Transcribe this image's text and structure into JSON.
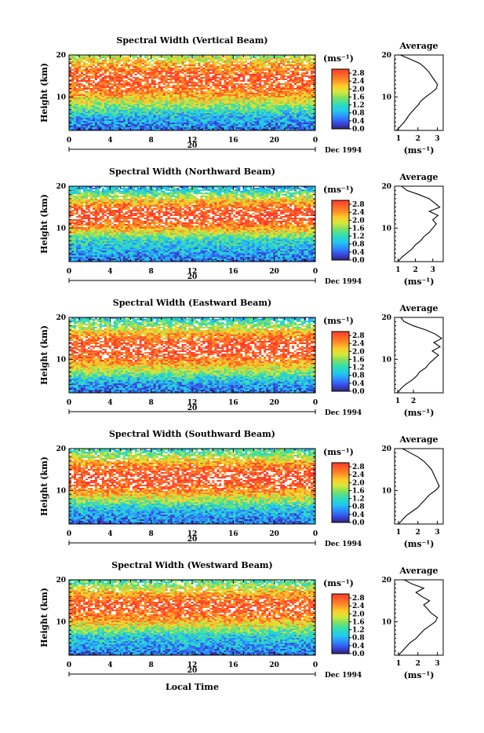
{
  "figure": {
    "xlabel": "Local Time",
    "date_label": "Dec 1994",
    "day_label": "20",
    "ylabel": "Height (km)",
    "units_label": "(ms⁻¹)",
    "avg_title": "Average",
    "avg_xlabel": "(ms⁻¹)"
  },
  "chart_data": [
    {
      "type": "heatmap",
      "title": "Spectral Width (Vertical Beam)",
      "x_ticks": [
        "0",
        "4",
        "8",
        "12",
        "16",
        "20",
        "0"
      ],
      "xlim": [
        0,
        24
      ],
      "y_ticks": [
        "10",
        "20"
      ],
      "ylim": [
        2,
        20
      ],
      "colorbar": {
        "ticks": [
          "2.8",
          "2.4",
          "2.0",
          "1.6",
          "1.2",
          "0.8",
          "0.4",
          "0.0"
        ],
        "range": [
          0,
          3.0
        ]
      },
      "profile_peak": [
        3.5,
        14,
        8,
        0.95
      ],
      "avg": {
        "x_ticks": [
          "1",
          "2",
          "3"
        ],
        "xlim": [
          0.8,
          3.3
        ],
        "heights": [
          2,
          3,
          4,
          5,
          6,
          7,
          8,
          9,
          10,
          11,
          12,
          13,
          14,
          15,
          16,
          17,
          18,
          19,
          20
        ],
        "values": [
          0.9,
          1.1,
          1.3,
          1.45,
          1.6,
          1.8,
          2.0,
          2.15,
          2.4,
          2.7,
          2.95,
          3.0,
          2.85,
          2.7,
          2.55,
          2.35,
          2.1,
          1.6,
          1.1
        ]
      }
    },
    {
      "type": "heatmap",
      "title": "Spectral Width (Northward Beam)",
      "x_ticks": [
        "0",
        "4",
        "8",
        "12",
        "16",
        "20",
        "0"
      ],
      "xlim": [
        0,
        24
      ],
      "y_ticks": [
        "10",
        "20"
      ],
      "ylim": [
        2,
        20
      ],
      "colorbar": {
        "ticks": [
          "2.8",
          "2.4",
          "2.0",
          "1.6",
          "1.2",
          "0.8",
          "0.4",
          "0.0"
        ],
        "range": [
          0,
          3.0
        ]
      },
      "profile_peak": [
        3.5,
        13,
        6,
        1.0
      ],
      "avg": {
        "x_ticks": [
          "1",
          "2",
          "3"
        ],
        "xlim": [
          0.8,
          3.6
        ],
        "heights": [
          2,
          3,
          4,
          5,
          6,
          7,
          8,
          9,
          10,
          11,
          12,
          13,
          14,
          15,
          16,
          17,
          18,
          19,
          20
        ],
        "values": [
          1.0,
          1.2,
          1.5,
          1.8,
          2.0,
          2.3,
          2.5,
          2.8,
          3.0,
          3.2,
          3.0,
          3.3,
          2.8,
          3.4,
          3.1,
          2.8,
          2.2,
          1.5,
          1.2
        ]
      }
    },
    {
      "type": "heatmap",
      "title": "Spectral Width (Eastward Beam)",
      "x_ticks": [
        "0",
        "4",
        "8",
        "12",
        "16",
        "20",
        "0"
      ],
      "xlim": [
        0,
        24
      ],
      "y_ticks": [
        "10",
        "20"
      ],
      "ylim": [
        2,
        20
      ],
      "colorbar": {
        "ticks": [
          "2.8",
          "2.4",
          "2.0",
          "1.6",
          "1.2",
          "0.8",
          "0.4",
          "0.0"
        ],
        "range": [
          0,
          3.0
        ]
      },
      "profile_peak": [
        3.5,
        12.5,
        7,
        1.0
      ],
      "avg": {
        "x_ticks": [
          "1",
          "2"
        ],
        "xlim": [
          0.8,
          3.9
        ],
        "heights": [
          2,
          3,
          4,
          5,
          6,
          7,
          8,
          9,
          10,
          11,
          12,
          13,
          14,
          15,
          16,
          17,
          18,
          19,
          20
        ],
        "values": [
          1.0,
          1.2,
          1.5,
          1.9,
          2.2,
          2.4,
          2.8,
          3.0,
          3.3,
          3.6,
          3.2,
          3.7,
          3.3,
          3.8,
          3.4,
          2.8,
          2.0,
          1.4,
          1.2
        ]
      }
    },
    {
      "type": "heatmap",
      "title": "Spectral Width (Southward Beam)",
      "x_ticks": [
        "0",
        "4",
        "8",
        "12",
        "16",
        "20",
        "0"
      ],
      "xlim": [
        0,
        24
      ],
      "y_ticks": [
        "10",
        "20"
      ],
      "ylim": [
        2,
        20
      ],
      "colorbar": {
        "ticks": [
          "2.8",
          "2.4",
          "2.0",
          "1.6",
          "1.2",
          "0.8",
          "0.4",
          "0.0"
        ],
        "range": [
          0,
          3.0
        ]
      },
      "profile_peak": [
        3.5,
        13,
        7,
        1.0
      ],
      "avg": {
        "x_ticks": [
          "1",
          "2",
          "3"
        ],
        "xlim": [
          0.8,
          3.3
        ],
        "heights": [
          2,
          3,
          4,
          5,
          6,
          7,
          8,
          9,
          10,
          11,
          12,
          13,
          14,
          15,
          16,
          17,
          18,
          19,
          20
        ],
        "values": [
          1.0,
          1.2,
          1.4,
          1.7,
          2.0,
          2.2,
          2.4,
          2.6,
          2.9,
          3.1,
          3.0,
          2.9,
          2.8,
          2.7,
          2.5,
          2.3,
          2.0,
          1.6,
          1.2
        ]
      }
    },
    {
      "type": "heatmap",
      "title": "Spectral Width (Westward Beam)",
      "x_ticks": [
        "0",
        "4",
        "8",
        "12",
        "16",
        "20",
        "0"
      ],
      "xlim": [
        0,
        24
      ],
      "y_ticks": [
        "10",
        "20"
      ],
      "ylim": [
        2,
        20
      ],
      "colorbar": {
        "ticks": [
          "2.8",
          "2.4",
          "2.0",
          "1.6",
          "1.2",
          "0.8",
          "0.4",
          "0.0"
        ],
        "range": [
          0,
          3.0
        ]
      },
      "profile_peak": [
        3.5,
        13.5,
        7,
        0.95
      ],
      "avg": {
        "x_ticks": [
          "1",
          "2",
          "3"
        ],
        "xlim": [
          0.8,
          3.3
        ],
        "heights": [
          2,
          3,
          4,
          5,
          6,
          7,
          8,
          9,
          10,
          11,
          12,
          13,
          14,
          15,
          16,
          17,
          18,
          19,
          20
        ],
        "values": [
          1.0,
          1.2,
          1.4,
          1.6,
          1.9,
          2.1,
          2.3,
          2.6,
          2.9,
          3.0,
          2.7,
          2.5,
          2.3,
          2.6,
          2.2,
          1.9,
          2.3,
          1.7,
          1.3
        ]
      }
    }
  ]
}
